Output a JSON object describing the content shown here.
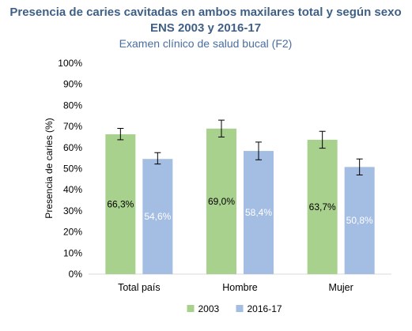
{
  "chart_data": {
    "type": "bar",
    "title": "Presencia de caries cavitadas en ambos maxilares total y según sexo",
    "title_line2": "ENS 2003 y 2016-17",
    "subtitle": "Examen clínico de salud bucal (F2)",
    "xlabel": "",
    "ylabel": "Presencia de caries (%)",
    "ylim": [
      0,
      100
    ],
    "yticks": [
      "0%",
      "10%",
      "20%",
      "30%",
      "40%",
      "50%",
      "60%",
      "70%",
      "80%",
      "90%",
      "100%"
    ],
    "categories": [
      "Total país",
      "Hombre",
      "Mujer"
    ],
    "series": [
      {
        "name": "2003",
        "color": "#a9d18e",
        "label_color": "#000000",
        "values": [
          66.3,
          69.0,
          63.7
        ],
        "labels": [
          "66,3%",
          "69,0%",
          "63,7%"
        ],
        "err_low": [
          63.7,
          65.0,
          59.7
        ],
        "err_high": [
          69.1,
          73.0,
          67.7
        ]
      },
      {
        "name": "2016-17",
        "color": "#a3bde3",
        "label_color": "#ffffff",
        "values": [
          54.6,
          58.4,
          50.8
        ],
        "labels": [
          "54,6%",
          "58,4%",
          "50,8%"
        ],
        "err_low": [
          52.2,
          54.2,
          47.0
        ],
        "err_high": [
          57.6,
          62.6,
          54.6
        ]
      }
    ],
    "grid": false,
    "legend_position": "bottom"
  }
}
